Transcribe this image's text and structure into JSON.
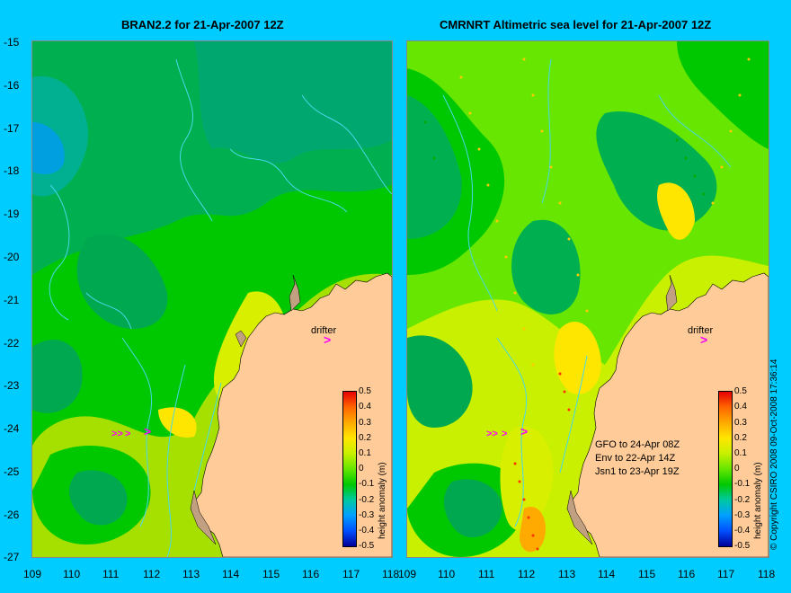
{
  "titles": {
    "left": "BRAN2.2 for 21-Apr-2007 12Z",
    "right": "CMRNRT Altimetric sea level  for 21-Apr-2007 12Z"
  },
  "y_ticks": [
    "-15",
    "-16",
    "-17",
    "-18",
    "-19",
    "-20",
    "-21",
    "-22",
    "-23",
    "-24",
    "-25",
    "-26",
    "-27"
  ],
  "x_ticks": [
    "109",
    "110",
    "111",
    "112",
    "113",
    "114",
    "115",
    "116",
    "117",
    "118"
  ],
  "colorbar": {
    "ticks": [
      "0.5",
      "0.4",
      "0.3",
      "0.2",
      "0.1",
      "0",
      "-0.1",
      "-0.2",
      "-0.3",
      "-0.4",
      "-0.5"
    ],
    "label": "height anomaly (m)",
    "colors": [
      "#e60000",
      "#ff6600",
      "#ffaa00",
      "#ffe600",
      "#c8f000",
      "#66e600",
      "#00c800",
      "#00c8a0",
      "#00a0ff",
      "#0050ff",
      "#000099"
    ]
  },
  "drifter": {
    "label": "drifter",
    "lon": 116.5,
    "lat": -22
  },
  "satellite_info": [
    "GFO to 24-Apr 08Z",
    "Env to 22-Apr 14Z",
    "Jsn1 to 23-Apr 19Z"
  ],
  "copyright": "© Copyright CSIRO 2008   09-Oct-2008 17:36:14",
  "map_extent": {
    "lon": [
      109,
      118
    ],
    "lat": [
      -27,
      -15
    ]
  },
  "colors": {
    "background": "#00ccff",
    "land": "#ffcc99",
    "accent_arrow": "#ff00ff"
  }
}
